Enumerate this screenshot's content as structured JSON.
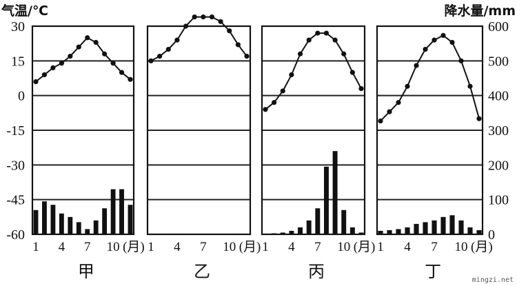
{
  "chart_data": {
    "type": "climate-chart",
    "left_axis": {
      "label": "气温/℃",
      "ticks": [
        "30",
        "15",
        "0",
        "-15",
        "-30",
        "-45",
        "-60"
      ],
      "ylim": [
        -60,
        30
      ]
    },
    "right_axis": {
      "label": "降水量/mm",
      "ticks": [
        "600",
        "500",
        "400",
        "300",
        "200",
        "100",
        "0"
      ],
      "ylim": [
        0,
        600
      ]
    },
    "x_ticks": [
      "1",
      "4",
      "7",
      "10",
      "(月)"
    ],
    "months": [
      1,
      2,
      3,
      4,
      5,
      6,
      7,
      8,
      9,
      10,
      11,
      12
    ],
    "grid": true,
    "panels": [
      {
        "name": "甲",
        "temperature": [
          6,
          9,
          12,
          14,
          17,
          21,
          25,
          23,
          18,
          14,
          10,
          7
        ],
        "precipitation": [
          70,
          95,
          85,
          60,
          50,
          35,
          15,
          40,
          75,
          130,
          130,
          85
        ]
      },
      {
        "name": "乙",
        "temperature": [
          15,
          17,
          20,
          24,
          30,
          34,
          34,
          34,
          32,
          28,
          22,
          17
        ],
        "precipitation": [
          0,
          0,
          0,
          2,
          0,
          0,
          0,
          0,
          0,
          0,
          2,
          0
        ]
      },
      {
        "name": "丙",
        "temperature": [
          -6,
          -3,
          2,
          9,
          18,
          24,
          27,
          27,
          24,
          18,
          10,
          3
        ],
        "precipitation": [
          2,
          3,
          5,
          10,
          20,
          40,
          75,
          195,
          240,
          70,
          20,
          5
        ]
      },
      {
        "name": "丁",
        "temperature": [
          -11,
          -7,
          -3,
          4,
          13,
          20,
          24,
          26,
          23,
          15,
          4,
          -10
        ],
        "precipitation": [
          10,
          12,
          15,
          20,
          30,
          35,
          40,
          50,
          55,
          40,
          20,
          12
        ]
      }
    ]
  },
  "watermark": "mingzi.net"
}
